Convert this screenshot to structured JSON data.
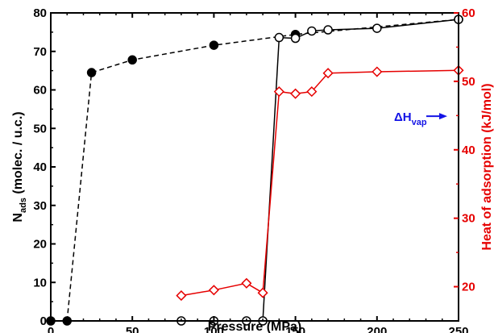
{
  "chart_data": {
    "type": "scatter",
    "xlabel": "Pressure (MPa)",
    "ylabel_main": "N",
    "ylabel_sub": "ads",
    "ylabel_rest": " (molec. / u.c.)",
    "y2label": "Heat of adsorption (kJ/mol)",
    "xlim": [
      0,
      250
    ],
    "ylim": [
      0,
      80
    ],
    "y2lim": [
      15,
      60
    ],
    "x_ticks": [
      "0",
      "50",
      "100",
      "150",
      "200",
      "250"
    ],
    "y_ticks": [
      "0",
      "10",
      "20",
      "30",
      "40",
      "50",
      "60",
      "70",
      "80"
    ],
    "y2_ticks": [
      "20",
      "30",
      "40",
      "50",
      "60"
    ],
    "annotation": {
      "main": "ΔH",
      "sub": "vap",
      "color": "#1414e6",
      "y2_value": 44.9
    },
    "series": [
      {
        "axis": "left",
        "marker": "filled-circle",
        "line": "dashed",
        "color": "#000000",
        "x": [
          0,
          10,
          25,
          50,
          100,
          150,
          250
        ],
        "y": [
          0,
          0,
          64.5,
          67.8,
          71.6,
          74.4,
          78.3
        ]
      },
      {
        "axis": "left",
        "marker": "open-circle",
        "line": "solid",
        "color": "#000000",
        "x": [
          80,
          100,
          120,
          130,
          140,
          150,
          160,
          170,
          200,
          250
        ],
        "y": [
          0,
          0,
          0,
          0,
          73.6,
          73.4,
          75.3,
          75.6,
          76.0,
          78.3
        ]
      },
      {
        "axis": "right",
        "marker": "open-diamond",
        "line": "solid",
        "color": "#e60000",
        "x": [
          80,
          100,
          120,
          130,
          140,
          150,
          160,
          170,
          200,
          250
        ],
        "y": [
          18.7,
          19.5,
          20.5,
          19.1,
          48.5,
          48.2,
          48.5,
          51.2,
          51.4,
          51.6
        ]
      }
    ]
  }
}
